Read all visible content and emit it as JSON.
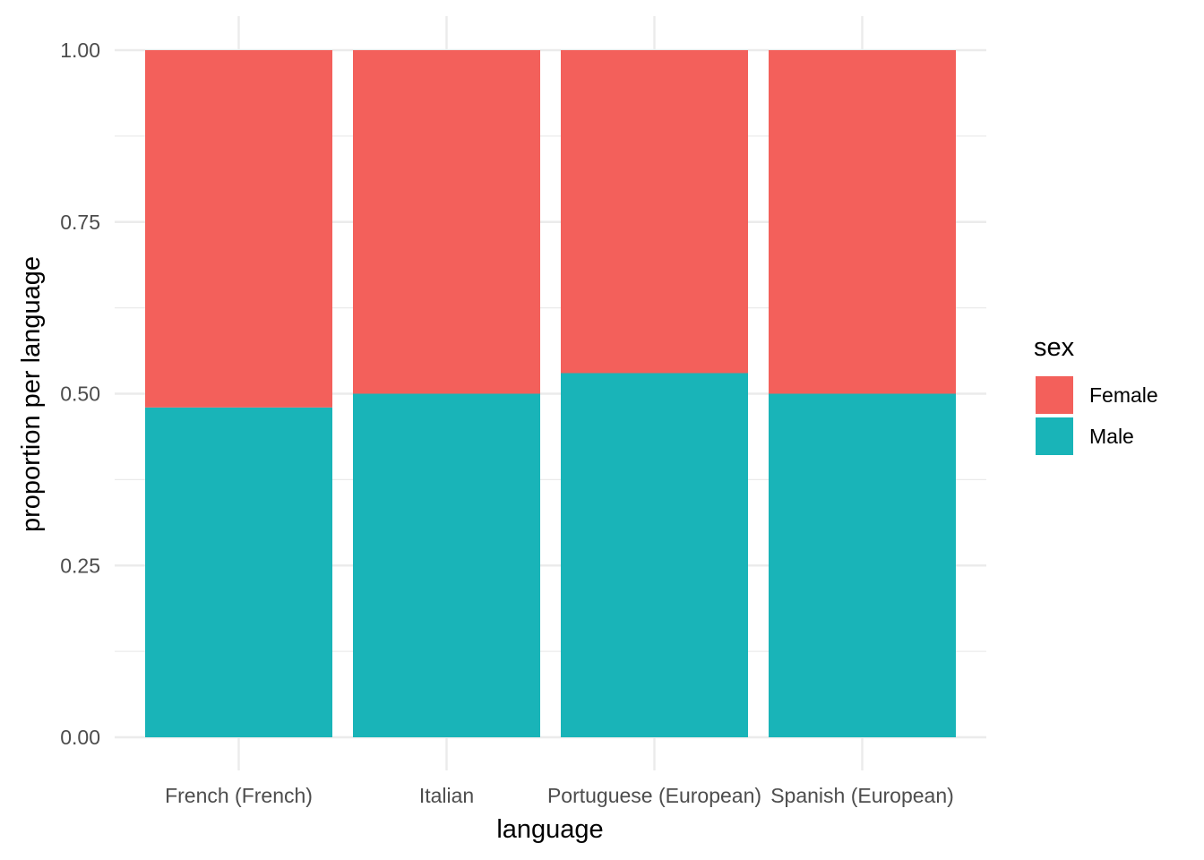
{
  "chart_data": {
    "type": "bar",
    "stacked": true,
    "categories": [
      "French (French)",
      "Italian",
      "Portuguese (European)",
      "Spanish (European)"
    ],
    "series": [
      {
        "name": "Male",
        "values": [
          0.48,
          0.5,
          0.53,
          0.5
        ],
        "color": "#19b4b8"
      },
      {
        "name": "Female",
        "values": [
          0.52,
          0.5,
          0.47,
          0.5
        ],
        "color": "#f3605b"
      }
    ],
    "xlabel": "language",
    "ylabel": "proportion per language",
    "ylim": [
      0,
      1
    ],
    "yticks": [
      0,
      0.25,
      0.5,
      0.75,
      1
    ],
    "ytick_labels": [
      "0.00",
      "0.25",
      "0.50",
      "0.75",
      "1.00"
    ],
    "legend": {
      "title": "sex",
      "position": "right",
      "items": [
        {
          "label": "Female",
          "color": "#f3605b"
        },
        {
          "label": "Male",
          "color": "#19b4b8"
        }
      ]
    },
    "grid": true,
    "grid_color": "#ebebeb"
  }
}
